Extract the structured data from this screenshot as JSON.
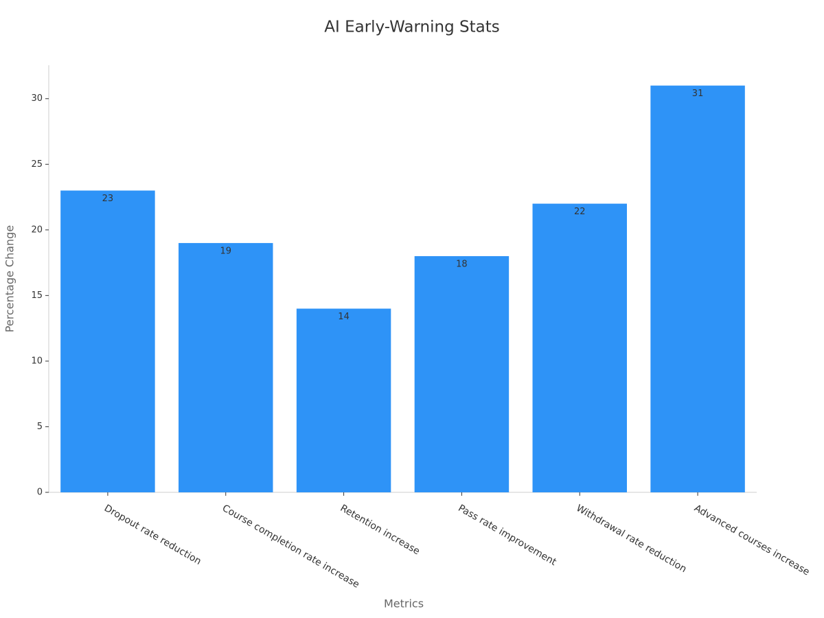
{
  "chart_data": {
    "type": "bar",
    "title": "AI Early-Warning Stats",
    "x_label": "Metrics",
    "y_label": "Percentage Change",
    "categories": [
      "Dropout rate reduction",
      "Course completion rate increase",
      "Retention increase",
      "Pass rate improvement",
      "Withdrawal rate reduction",
      "Advanced courses increase"
    ],
    "values": [
      23,
      19,
      14,
      18,
      22,
      31
    ],
    "color": "#2e93f7",
    "ylim": [
      0,
      32.55
    ],
    "yticks": [
      0,
      5,
      10,
      15,
      20,
      25,
      30
    ],
    "grid": false
  }
}
